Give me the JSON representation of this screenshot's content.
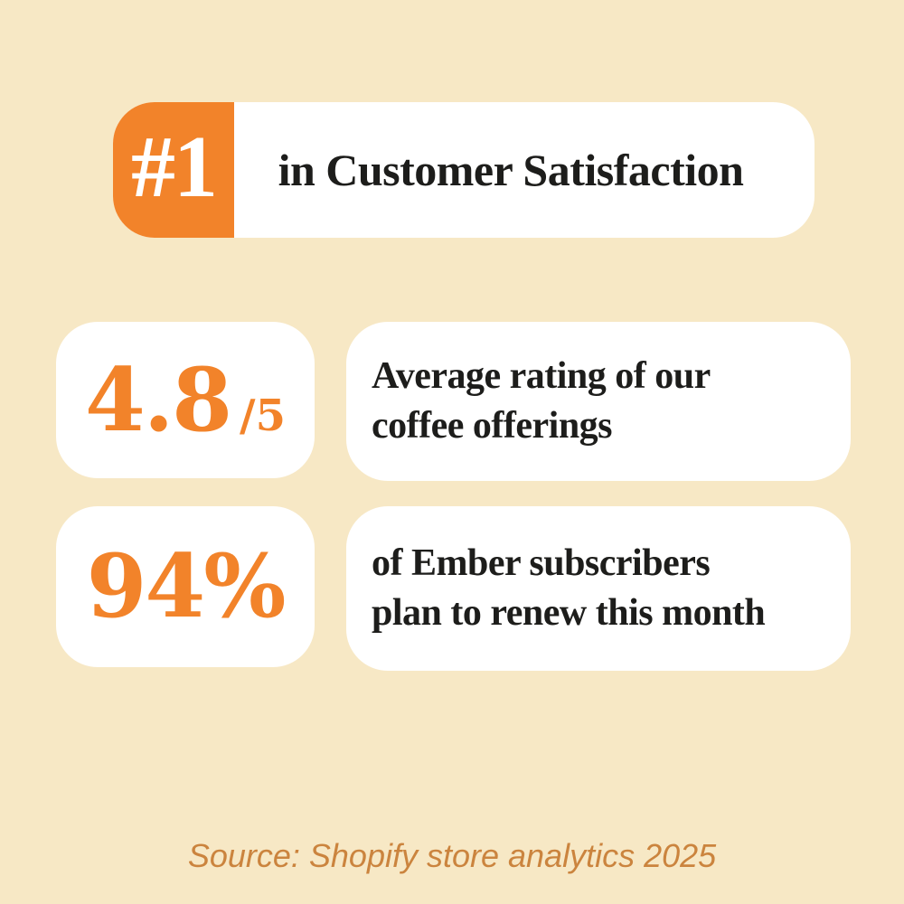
{
  "theme": {
    "background": "#F7E8C5",
    "card_background": "#FFFFFF",
    "accent_orange": "#F2832A",
    "text_dark": "#1D1D1B",
    "source_text_color": "#CB843E"
  },
  "badge": {
    "rank": "#1",
    "title": "in Customer Satisfaction"
  },
  "stats": [
    {
      "value": "4.8",
      "suffix": "/5",
      "description_line1": "Average rating of our",
      "description_line2": "coffee offerings"
    },
    {
      "value": "94%",
      "suffix": "",
      "description_line1": "of Ember subscribers",
      "description_line2": "plan to renew this month"
    }
  ],
  "footer": {
    "source": "Source: Shopify store analytics 2025"
  }
}
